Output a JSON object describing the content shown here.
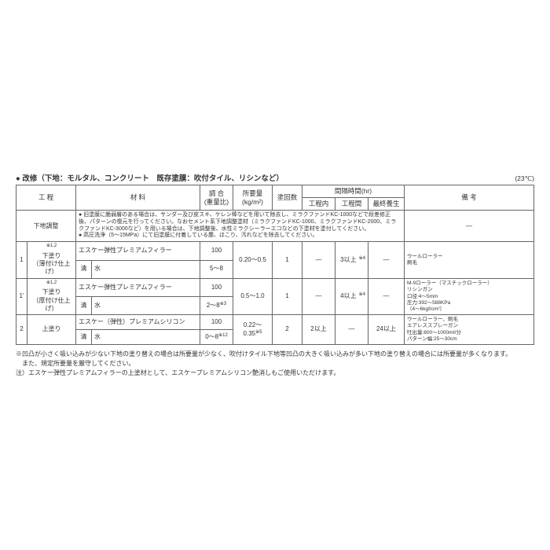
{
  "temp_unit": "(23℃)",
  "title": "● 改修（下地：モルタル、コンクリート　既存塗膜：吹付タイル、リシンなど）",
  "header": {
    "process": "工 程",
    "material": "材 料",
    "ratio": "調 合\n(重量比)",
    "amount": "所要量\n(kg/m²)",
    "coats": "塗回数",
    "interval": "間隔時間(hr)",
    "interval_sub": {
      "within": "工程内",
      "between": "工程間",
      "final": "最終養生"
    },
    "remark": "備 考"
  },
  "rows": [
    {
      "process_full": "下地調整",
      "note_text": "● 旧塗膜に脆弱層のある場合は、サンダー及び皮スキ、ケレン棒などを用いて除去し、ミラクファンドKC-1000などで段差修正後、パターンの復元を行ってください。なおセメント系下地調整塗材（ミラクファンドKC-1000、ミラクファンドKC-2000、ミラクファンドKC-3000など）を用いる場合は、下地調整後、水性ミラクシーラーエコなどの下塗材を塗付してください。\n● 高圧洗浄（5〜15MPa）にて旧塗膜に付着している塵、ほこり、汚れなどを除去してください。",
      "remark": "—"
    },
    {
      "num": "1",
      "process": "下塗り\n（薄付け仕上げ）",
      "sup": "※1,2",
      "mat1": "エスケー弾性プレミアムフィラー",
      "ratio1": "100",
      "amt": "0.20〜0.5",
      "mat2_label": "清",
      "mat2": "水",
      "ratio2": "5〜8",
      "amt2": "—",
      "coats": "1",
      "within": "—",
      "between": "3以上",
      "between_sup": "※4",
      "final": "—",
      "remark": "ウールローラー\n刷毛"
    },
    {
      "num": "1'",
      "process": "下塗り\n（厚付け仕上げ）",
      "sup": "※1,2",
      "mat1": "エスケー弾性プレミアムフィラー",
      "ratio1": "100",
      "amt": "0.5〜1.0",
      "mat2_label": "清",
      "mat2": "水",
      "ratio2": "2〜8",
      "ratio2_sup": "※3",
      "amt2": "—",
      "coats": "1",
      "within": "—",
      "between": "4以上",
      "between_sup": "※4",
      "final": "—",
      "remark": "M-9ローラー（マスチックローラー）\nリシンガン\n口径:4〜5mm\n圧力:392〜588KPa\n（4〜6kgf/cm²）"
    },
    {
      "num": "2",
      "process": "上塗り",
      "mat1": "エスケー（弾性）プレミアムシリコン",
      "ratio1": "100",
      "amt": "0.22〜0.35",
      "amt_sup": "※5",
      "mat2_label": "清",
      "mat2": "水",
      "ratio2": "0〜8",
      "ratio2_sup": "※12",
      "amt2": "—",
      "coats": "2",
      "within": "2以上",
      "between": "—",
      "final": "24以上",
      "remark": "ウールローラー、刷毛\nエアレススプレーガン\n吐出量:800〜1000mℓ/分\nパターン幅:25〜30cm"
    }
  ],
  "footnotes": {
    "star": "※凹凸が小さく吸い込みが少ない下地の塗り替えの場合は所要量が少なく、吹付けタイル下地等凹凸の大きく吸い込みが多い下地の塗り替えの場合には所要量が多くなります。\n　また、規定所要量を厳守してください。",
    "note": "注）エスケー弾性プレミアムフィラーの上塗材として、エスケープレミアムシリコン艶消しもご使用いただけます。"
  },
  "colors": {
    "border": "#666666",
    "text": "#333333",
    "bg": "#ffffff"
  }
}
